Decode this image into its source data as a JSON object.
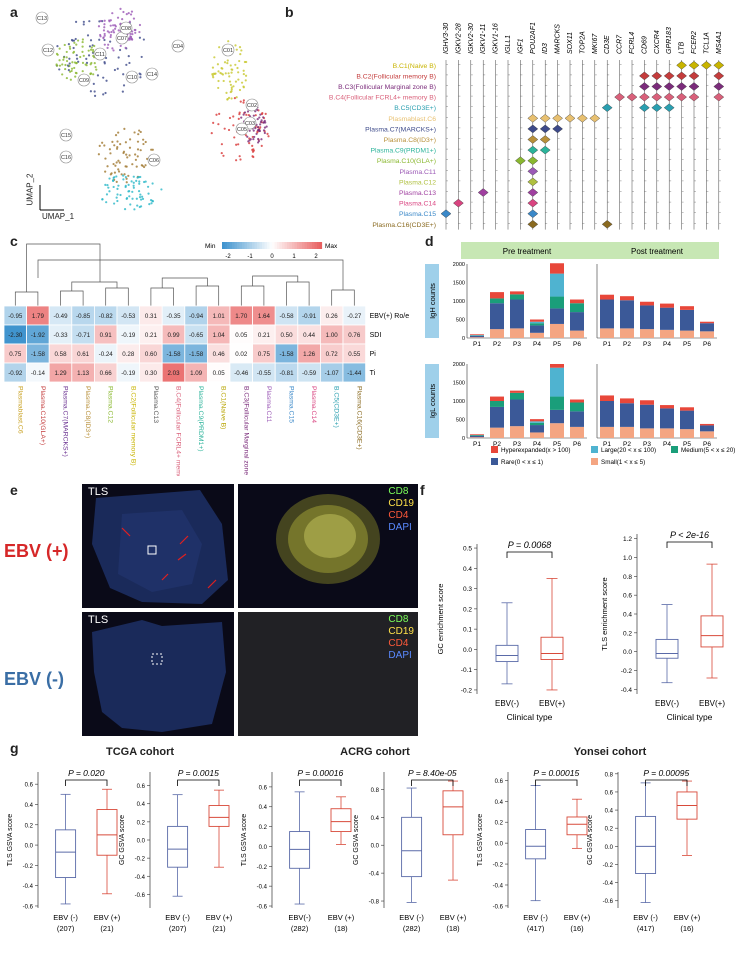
{
  "panel_labels": {
    "a": "a",
    "b": "b",
    "c": "c",
    "d": "d",
    "e": "e",
    "f": "f",
    "g": "g"
  },
  "panel_a": {
    "xlabel": "UMAP_1",
    "ylabel": "UMAP_2",
    "clusters": [
      "C01",
      "C02",
      "C03",
      "C04",
      "C05",
      "C06",
      "C07",
      "C08",
      "C09",
      "C10",
      "C11",
      "C12",
      "C13",
      "C14",
      "C15",
      "C16"
    ]
  },
  "panel_b": {
    "genes": [
      "IGHV3-30",
      "IGKV2-28",
      "IGKV2-30",
      "IGKV1-11",
      "IGKV1-16",
      "IGLL1",
      "IGF1",
      "POU2AF1",
      "ID3",
      "MARCKS",
      "SOX11",
      "TOP2A",
      "MKI67",
      "CD3E",
      "CCR7",
      "FCRL4",
      "CD69",
      "CXCR4",
      "GPR183",
      "LTB",
      "FCER2",
      "TCL1A",
      "MS4A1"
    ],
    "row_labels": [
      "B.C1(Naive B)",
      "B.C2(Follicular memory B)",
      "B.C3(Follicular Marginal zone B)",
      "B.C4(Follicular FCRL4+ memory B)",
      "B.C5(CD3E+)",
      "Plasmablast.C6",
      "Plasma.C7(MARCKS+)",
      "Plasma.C8(ID3+)",
      "Plasma.C9(PRDM1+)",
      "Plasma.C10(GLA+)",
      "Plasma.C11",
      "Plasma.C12",
      "Plasma.C13",
      "Plasma.C14",
      "Plasma.C15",
      "Plasma.C16(CD3E+)"
    ],
    "row_colors": [
      "#c8b400",
      "#c43c3c",
      "#7b2c7b",
      "#d9607a",
      "#2a9fb0",
      "#e8c070",
      "#3d4a8a",
      "#b8903a",
      "#2bb39a",
      "#8ab830",
      "#9b59b6",
      "#b0c040",
      "#a040a0",
      "#d94480",
      "#3a88c8",
      "#8a6a20"
    ]
  },
  "panel_c": {
    "legend": {
      "min": "Min",
      "max": "Max",
      "ticks": [
        "-2",
        "-1",
        "0",
        "1",
        "2"
      ]
    },
    "rows": [
      "EBV(+) Ro/e",
      "SDI",
      "Pi",
      "Ti"
    ],
    "columns": [
      "Plasmablast.C6",
      "Plasma.C10(GLA+)",
      "Plasma.C7(MARCKS+)",
      "Plasma.C8(ID3+)",
      "Plasma.C12",
      "B.C2(Follicular memory B)",
      "Plasma.C13",
      "B.C4(Follicular FCRL4+ memory B)",
      "Plasma.C9(PRDM1+)",
      "B.C1(Naive B)",
      "B.C3(Follicular Marginal zone B)",
      "Plasma.C11",
      "Plasma.C15",
      "Plasma.C14",
      "B.C5(CD3E+)",
      "Plasma.C16(CD3E+)"
    ],
    "col_colors": [
      "#c8a020",
      "#c43c3c",
      "#6a3090",
      "#b8903a",
      "#8ab830",
      "#c8b400",
      "#555555",
      "#d9607a",
      "#2bb39a",
      "#b8a400",
      "#7b2c7b",
      "#9b59b6",
      "#3a88c8",
      "#d94480",
      "#2a9fb0",
      "#8a6a20"
    ],
    "values": [
      [
        -0.95,
        1.79,
        -0.49,
        -0.85,
        -0.82,
        -0.53,
        0.31,
        -0.35,
        -0.94,
        1.01,
        1.7,
        1.64,
        -0.58,
        -0.91,
        0.26,
        -0.27
      ],
      [
        -2.3,
        -1.92,
        -0.33,
        -0.71,
        0.91,
        -0.19,
        0.21,
        0.99,
        -0.65,
        1.04,
        0.05,
        0.21,
        0.5,
        0.44,
        1.0,
        0.76
      ],
      [
        0.75,
        -1.58,
        0.58,
        0.61,
        -0.24,
        0.28,
        0.6,
        -1.58,
        -1.58,
        0.46,
        0.02,
        0.75,
        -1.58,
        1.26,
        0.72,
        0.55
      ],
      [
        -0.92,
        -0.14,
        1.29,
        1.13,
        0.66,
        -0.19,
        0.3,
        2.03,
        1.09,
        0.05,
        -0.46,
        -0.55,
        -0.81,
        -0.59,
        -1.07,
        -1.44
      ]
    ],
    "value_labels": [
      [
        "-0.95",
        "1.79",
        "-0.49",
        "-0.85",
        "-0.82",
        "-0.53",
        "0.31",
        "-0.35",
        "-0.94",
        "1.01",
        "1.70",
        "1.64",
        "-0.58",
        "-0.91",
        "0.26",
        "-0.27"
      ],
      [
        "-2.30",
        "-1.92",
        "-0.33",
        "-0.71",
        "0.91",
        "-0.19",
        "0.21",
        "0.99",
        "-0.65",
        "1.04",
        "0.05",
        "0.21",
        "0.50",
        "0.44",
        "1.00",
        "0.76"
      ],
      [
        "0.75",
        "-1.58",
        "0.58",
        "0.61",
        "-0.24",
        "0.28",
        "0.60",
        "-1.58",
        "-1.58",
        "0.46",
        "0.02",
        "0.75",
        "-1.58",
        "1.26",
        "0.72",
        "0.55"
      ],
      [
        "-0.92",
        "-0.14",
        "1.29",
        "1.13",
        "0.66",
        "-0.19",
        "0.30",
        "2.03",
        "1.09",
        "0.05",
        "-0.46",
        "-0.55",
        "-0.81",
        "-0.59",
        "-1.07",
        "-1.44"
      ]
    ]
  },
  "chart_data": [
    {
      "type": "bar",
      "id": "d-igh-pre",
      "title": "Pre treatment",
      "ylabel": "IgH counts",
      "categories": [
        "P1",
        "P2",
        "P3",
        "P4",
        "P5",
        "P6"
      ],
      "ylim": [
        0,
        2000
      ],
      "yticks": [
        0,
        500,
        1000,
        1500,
        2000
      ],
      "series": [
        {
          "name": "Small(1 < x ≤ 5)",
          "color": "#f4a582",
          "values": [
            20,
            240,
            260,
            140,
            380,
            200
          ]
        },
        {
          "name": "Rare(0 < x ≤ 1)",
          "color": "#3b5998",
          "values": [
            40,
            700,
            780,
            200,
            420,
            500
          ]
        },
        {
          "name": "Medium(5 < x ≤ 20)",
          "color": "#1a9e7a",
          "values": [
            10,
            130,
            140,
            60,
            320,
            240
          ]
        },
        {
          "name": "Large(20 < x ≤ 100)",
          "color": "#4fb3d0",
          "values": [
            10,
            0,
            0,
            40,
            620,
            0
          ]
        },
        {
          "name": "Hyperexpanded(x > 100)",
          "color": "#e8473a",
          "values": [
            20,
            170,
            80,
            60,
            280,
            100
          ]
        }
      ]
    },
    {
      "type": "bar",
      "id": "d-igh-post",
      "title": "Post treatment",
      "categories": [
        "P1",
        "P2",
        "P3",
        "P4",
        "P5",
        "P6"
      ],
      "ylim": [
        0,
        2000
      ],
      "series": [
        {
          "name": "Small(1 < x ≤ 5)",
          "color": "#f4a582",
          "values": [
            260,
            260,
            240,
            220,
            200,
            180
          ]
        },
        {
          "name": "Rare(0 < x ≤ 1)",
          "color": "#3b5998",
          "values": [
            780,
            760,
            640,
            600,
            560,
            220
          ]
        },
        {
          "name": "Medium(5 < x ≤ 20)",
          "color": "#1a9e7a",
          "values": [
            0,
            0,
            0,
            0,
            0,
            0
          ]
        },
        {
          "name": "Large(20 < x ≤ 100)",
          "color": "#4fb3d0",
          "values": [
            0,
            0,
            0,
            0,
            0,
            0
          ]
        },
        {
          "name": "Hyperexpanded(x > 100)",
          "color": "#e8473a",
          "values": [
            130,
            110,
            100,
            110,
            100,
            40
          ]
        }
      ]
    },
    {
      "type": "bar",
      "id": "d-igl-pre",
      "ylabel": "IgL counts",
      "categories": [
        "P1",
        "P2",
        "P3",
        "P4",
        "P5",
        "P6"
      ],
      "ylim": [
        0,
        2000
      ],
      "yticks": [
        0,
        500,
        1000,
        1500,
        2000
      ],
      "series": [
        {
          "name": "Small(1 < x ≤ 5)",
          "color": "#f4a582",
          "values": [
            20,
            280,
            320,
            150,
            400,
            300
          ]
        },
        {
          "name": "Rare(0 < x ≤ 1)",
          "color": "#3b5998",
          "values": [
            40,
            560,
            720,
            200,
            360,
            420
          ]
        },
        {
          "name": "Medium(5 < x ≤ 20)",
          "color": "#1a9e7a",
          "values": [
            20,
            160,
            180,
            60,
            360,
            240
          ]
        },
        {
          "name": "Large(20 < x ≤ 100)",
          "color": "#4fb3d0",
          "values": [
            0,
            0,
            0,
            40,
            780,
            0
          ]
        },
        {
          "name": "Hyperexpanded(x > 100)",
          "color": "#e8473a",
          "values": [
            20,
            120,
            60,
            60,
            100,
            80
          ]
        }
      ]
    },
    {
      "type": "bar",
      "id": "d-igl-post",
      "categories": [
        "P1",
        "P2",
        "P3",
        "P4",
        "P5",
        "P6"
      ],
      "ylim": [
        0,
        2000
      ],
      "series": [
        {
          "name": "Small(1 < x ≤ 5)",
          "color": "#f4a582",
          "values": [
            300,
            300,
            260,
            260,
            240,
            180
          ]
        },
        {
          "name": "Rare(0 < x ≤ 1)",
          "color": "#3b5998",
          "values": [
            700,
            640,
            640,
            540,
            500,
            160
          ]
        },
        {
          "name": "Medium(5 < x ≤ 20)",
          "color": "#1a9e7a",
          "values": [
            0,
            0,
            0,
            0,
            0,
            0
          ]
        },
        {
          "name": "Large(20 < x ≤ 100)",
          "color": "#4fb3d0",
          "values": [
            0,
            0,
            0,
            0,
            0,
            0
          ]
        },
        {
          "name": "Hyperexpanded(x > 100)",
          "color": "#e8473a",
          "values": [
            150,
            130,
            120,
            90,
            90,
            40
          ]
        }
      ]
    },
    {
      "type": "box",
      "id": "f-gc",
      "ylabel": "GC enrichment score",
      "xlabel": "Clinical type",
      "categories": [
        "EBV(-)",
        "EBV(+)"
      ],
      "ylim": [
        -0.22,
        0.52
      ],
      "yticks": [
        -0.2,
        -0.1,
        0.0,
        0.1,
        0.2,
        0.3,
        0.4,
        0.5
      ],
      "pvalue": "P = 0.0068",
      "boxes": [
        {
          "min": -0.17,
          "q1": -0.06,
          "median": -0.03,
          "q3": 0.02,
          "max": 0.23,
          "color": "#5a6aa8"
        },
        {
          "min": -0.2,
          "q1": -0.05,
          "median": -0.02,
          "q3": 0.06,
          "max": 0.35,
          "color": "#d84a3a"
        }
      ]
    },
    {
      "type": "box",
      "id": "f-tls",
      "ylabel": "TLS enrichment score",
      "xlabel": "Clinical type",
      "categories": [
        "EBV(-)",
        "EBV(+)"
      ],
      "ylim": [
        -0.45,
        1.25
      ],
      "yticks": [
        -0.4,
        -0.2,
        0.0,
        0.2,
        0.4,
        0.6,
        0.8,
        1.0,
        1.2
      ],
      "pvalue": "P < 2e-16",
      "boxes": [
        {
          "min": -0.33,
          "q1": -0.07,
          "median": -0.02,
          "q3": 0.13,
          "max": 0.5,
          "color": "#5a6aa8"
        },
        {
          "min": -0.28,
          "q1": 0.05,
          "median": 0.17,
          "q3": 0.38,
          "max": 0.93,
          "color": "#d84a3a"
        }
      ]
    },
    {
      "type": "box",
      "id": "g-tcga-tls",
      "ylabel": "TLS GSVA score",
      "categories": [
        "EBV (-)",
        "EBV (+)"
      ],
      "counts": [
        "(207)",
        "(21)"
      ],
      "ylim": [
        -0.62,
        0.72
      ],
      "yticks": [
        -0.6,
        -0.4,
        -0.2,
        0.0,
        0.2,
        0.4,
        0.6
      ],
      "pvalue": "P = 0.020",
      "boxes": [
        {
          "min": -0.58,
          "q1": -0.32,
          "median": -0.07,
          "q3": 0.15,
          "max": 0.5,
          "color": "#5a6aa8"
        },
        {
          "min": -0.48,
          "q1": -0.1,
          "median": 0.1,
          "q3": 0.35,
          "max": 0.55,
          "color": "#d84a3a"
        }
      ]
    },
    {
      "type": "box",
      "id": "g-tcga-gc",
      "ylabel": "GC GSVA score",
      "categories": [
        "EBV (-)",
        "EBV (+)"
      ],
      "counts": [
        "(207)",
        "(21)"
      ],
      "ylim": [
        -0.75,
        0.75
      ],
      "yticks": [
        -0.6,
        -0.4,
        -0.2,
        0.0,
        0.2,
        0.4,
        0.6
      ],
      "pvalue": "P = 0.0015",
      "boxes": [
        {
          "min": -0.62,
          "q1": -0.3,
          "median": -0.1,
          "q3": 0.15,
          "max": 0.5,
          "color": "#5a6aa8"
        },
        {
          "min": -0.3,
          "q1": 0.15,
          "median": 0.25,
          "q3": 0.38,
          "max": 0.55,
          "color": "#d84a3a"
        }
      ]
    },
    {
      "type": "box",
      "id": "g-acrg-tls",
      "ylabel": "TLS GSVA score",
      "categories": [
        "EBV(-)",
        "EBV (+)"
      ],
      "counts": [
        "(282)",
        "(18)"
      ],
      "ylim": [
        -0.62,
        0.75
      ],
      "yticks": [
        -0.6,
        -0.4,
        -0.2,
        0.0,
        0.2,
        0.4,
        0.6
      ],
      "pvalue": "P = 0.00016",
      "boxes": [
        {
          "min": -0.58,
          "q1": -0.22,
          "median": -0.03,
          "q3": 0.15,
          "max": 0.55,
          "color": "#5a6aa8"
        },
        {
          "min": 0.02,
          "q1": 0.15,
          "median": 0.25,
          "q3": 0.38,
          "max": 0.5,
          "color": "#d84a3a"
        }
      ]
    },
    {
      "type": "box",
      "id": "g-acrg-gc",
      "ylabel": "GC GSVA score",
      "categories": [
        "EBV (-)",
        "EBV (+)"
      ],
      "counts": [
        "(282)",
        "(18)"
      ],
      "ylim": [
        -0.9,
        1.05
      ],
      "yticks": [
        -0.8,
        -0.4,
        0.0,
        0.4,
        0.8
      ],
      "pvalue": "P = 8.40e-05",
      "boxes": [
        {
          "min": -0.82,
          "q1": -0.45,
          "median": -0.08,
          "q3": 0.4,
          "max": 0.82,
          "color": "#5a6aa8"
        },
        {
          "min": -0.5,
          "q1": 0.15,
          "median": 0.55,
          "q3": 0.78,
          "max": 0.92,
          "color": "#d84a3a"
        }
      ]
    },
    {
      "type": "box",
      "id": "g-yonsei-tls",
      "ylabel": "TLS GSVA score",
      "categories": [
        "EBV (-)",
        "EBV (+)"
      ],
      "counts": [
        "(417)",
        "(16)"
      ],
      "ylim": [
        -0.62,
        0.68
      ],
      "yticks": [
        -0.6,
        -0.4,
        -0.2,
        0.0,
        0.2,
        0.4,
        0.6
      ],
      "pvalue": "P = 0.00015",
      "boxes": [
        {
          "min": -0.55,
          "q1": -0.15,
          "median": -0.03,
          "q3": 0.13,
          "max": 0.55,
          "color": "#5a6aa8"
        },
        {
          "min": -0.05,
          "q1": 0.08,
          "median": 0.18,
          "q3": 0.25,
          "max": 0.42,
          "color": "#d84a3a"
        }
      ]
    },
    {
      "type": "box",
      "id": "g-yonsei-gc",
      "ylabel": "GC GSVA score",
      "categories": [
        "EBV (-)",
        "EBV (+)"
      ],
      "counts": [
        "(417)",
        "(16)"
      ],
      "ylim": [
        -0.68,
        0.82
      ],
      "yticks": [
        -0.6,
        -0.4,
        -0.2,
        0.0,
        0.2,
        0.4,
        0.6,
        0.8
      ],
      "pvalue": "P = 0.00095",
      "boxes": [
        {
          "min": -0.62,
          "q1": -0.3,
          "median": 0.0,
          "q3": 0.33,
          "max": 0.7,
          "color": "#5a6aa8"
        },
        {
          "min": -0.1,
          "q1": 0.3,
          "median": 0.45,
          "q3": 0.6,
          "max": 0.72,
          "color": "#d84a3a"
        }
      ]
    }
  ],
  "panel_d_legend": [
    "Hyperexpanded(x > 100)",
    "Large(20 < x ≤ 100)",
    "Medium(5 < x ≤ 20)",
    "Rare(0 < x ≤ 1)",
    "Small(1 < x ≤ 5)"
  ],
  "panel_e": {
    "tls": "TLS",
    "ebv_pos": "EBV (+)",
    "ebv_neg": "EBV (-)",
    "stains": [
      "CD8",
      "CD19",
      "CD4",
      "DAPI"
    ],
    "stain_colors": [
      "#7cff5a",
      "#ffe24a",
      "#ff5a3a",
      "#5a8aff"
    ]
  },
  "panel_g": {
    "cohorts": [
      "TCGA cohort",
      "ACRG cohort",
      "Yonsei cohort"
    ]
  }
}
